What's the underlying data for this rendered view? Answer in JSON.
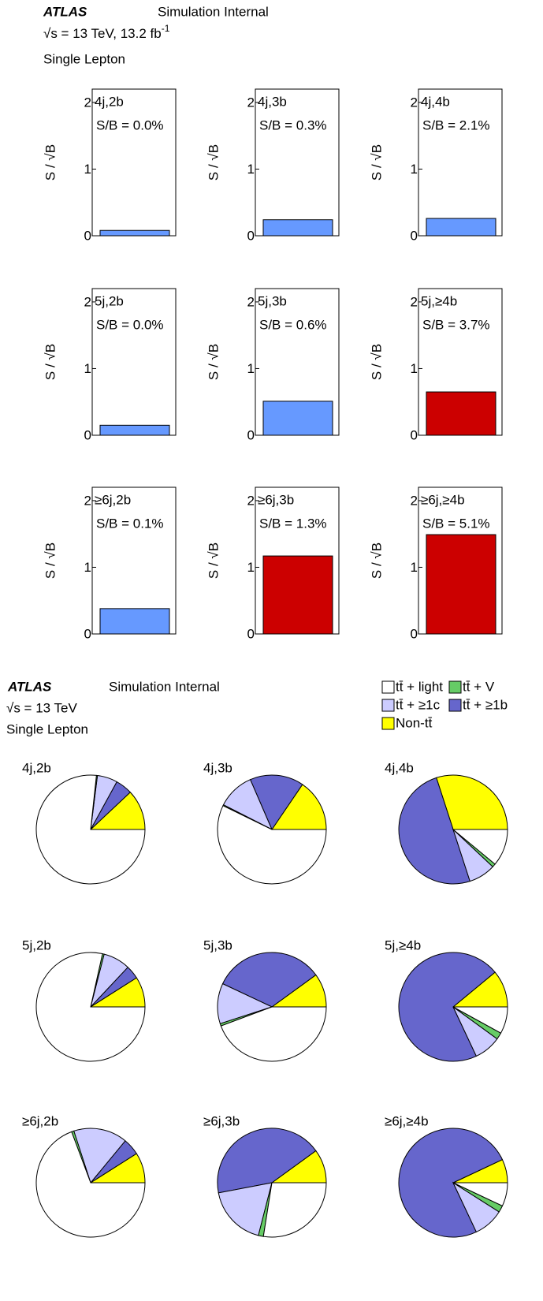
{
  "bar_header": {
    "experiment": "ATLAS",
    "status": "Simulation Internal",
    "energy": "√s = 13 TeV, 13.2 fb",
    "lumi_exponent": "-1",
    "channel": "Single Lepton"
  },
  "pie_header": {
    "experiment": "ATLAS",
    "status": "Simulation Internal",
    "energy": "√s = 13 TeV",
    "channel": "Single Lepton"
  },
  "pie_series": [
    {
      "name": "tt̄ + light",
      "color": "#ffffff"
    },
    {
      "name": "tt̄ + V",
      "color": "#66cc66"
    },
    {
      "name": "tt̄ + ≥1c",
      "color": "#ccccff"
    },
    {
      "name": "tt̄ + ≥1b",
      "color": "#6666cc"
    },
    {
      "name": "Non-tt̄",
      "color": "#ffff00"
    }
  ],
  "chart_data": [
    {
      "type": "bar",
      "title": "4j,2b",
      "annotation": "S/B = 0.0%",
      "ylabel": "S / √B",
      "categories": [
        null
      ],
      "values": [
        0.08
      ],
      "color": "#6699ff",
      "ylim": [
        0,
        2.2
      ],
      "yticks": [
        0,
        1,
        2
      ]
    },
    {
      "type": "bar",
      "title": "4j,3b",
      "annotation": "S/B = 0.3%",
      "ylabel": "S / √B",
      "categories": [
        null
      ],
      "values": [
        0.24
      ],
      "color": "#6699ff",
      "ylim": [
        0,
        2.2
      ],
      "yticks": [
        0,
        1,
        2
      ]
    },
    {
      "type": "bar",
      "title": "4j,4b",
      "annotation": "S/B = 2.1%",
      "ylabel": "S / √B",
      "categories": [
        null
      ],
      "values": [
        0.26
      ],
      "color": "#6699ff",
      "ylim": [
        0,
        2.2
      ],
      "yticks": [
        0,
        1,
        2
      ]
    },
    {
      "type": "bar",
      "title": "5j,2b",
      "annotation": "S/B = 0.0%",
      "ylabel": "S / √B",
      "categories": [
        null
      ],
      "values": [
        0.15
      ],
      "color": "#6699ff",
      "ylim": [
        0,
        2.2
      ],
      "yticks": [
        0,
        1,
        2
      ]
    },
    {
      "type": "bar",
      "title": "5j,3b",
      "annotation": "S/B = 0.6%",
      "ylabel": "S / √B",
      "categories": [
        null
      ],
      "values": [
        0.51
      ],
      "color": "#6699ff",
      "ylim": [
        0,
        2.2
      ],
      "yticks": [
        0,
        1,
        2
      ]
    },
    {
      "type": "bar",
      "title": "5j,≥4b",
      "annotation": "S/B = 3.7%",
      "ylabel": "S / √B",
      "categories": [
        null
      ],
      "values": [
        0.65
      ],
      "color": "#cc0000",
      "ylim": [
        0,
        2.2
      ],
      "yticks": [
        0,
        1,
        2
      ]
    },
    {
      "type": "bar",
      "title": "≥6j,2b",
      "annotation": "S/B = 0.1%",
      "ylabel": "S / √B",
      "categories": [
        null
      ],
      "values": [
        0.38
      ],
      "color": "#6699ff",
      "ylim": [
        0,
        2.2
      ],
      "yticks": [
        0,
        1,
        2
      ]
    },
    {
      "type": "bar",
      "title": "≥6j,3b",
      "annotation": "S/B = 1.3%",
      "ylabel": "S / √B",
      "categories": [
        null
      ],
      "values": [
        1.17
      ],
      "color": "#cc0000",
      "ylim": [
        0,
        2.2
      ],
      "yticks": [
        0,
        1,
        2
      ]
    },
    {
      "type": "bar",
      "title": "≥6j,≥4b",
      "annotation": "S/B = 5.1%",
      "ylabel": "S / √B",
      "categories": [
        null
      ],
      "values": [
        1.49
      ],
      "color": "#cc0000",
      "ylim": [
        0,
        2.2
      ],
      "yticks": [
        0,
        1,
        2
      ]
    },
    {
      "type": "pie",
      "title": "4j,2b",
      "values": [
        76.7,
        0.3,
        6,
        5,
        12
      ]
    },
    {
      "type": "pie",
      "title": "4j,3b",
      "values": [
        57.2,
        0.3,
        11,
        16,
        15.5
      ]
    },
    {
      "type": "pie",
      "title": "4j,4b",
      "values": [
        11,
        1,
        8,
        50,
        30
      ]
    },
    {
      "type": "pie",
      "title": "5j,2b",
      "values": [
        78.5,
        0.5,
        8,
        4,
        9
      ]
    },
    {
      "type": "pie",
      "title": "5j,3b",
      "values": [
        44.3,
        0.7,
        12,
        33,
        10
      ]
    },
    {
      "type": "pie",
      "title": "5j,≥4b",
      "values": [
        8,
        2,
        8,
        71,
        11
      ]
    },
    {
      "type": "pie",
      "title": "≥6j,2b",
      "values": [
        69.3,
        0.7,
        16,
        5,
        9
      ]
    },
    {
      "type": "pie",
      "title": "≥6j,3b",
      "values": [
        27.5,
        1.5,
        18,
        43,
        10
      ]
    },
    {
      "type": "pie",
      "title": "≥6j,≥4b",
      "values": [
        7,
        2,
        9,
        75,
        7
      ]
    }
  ]
}
